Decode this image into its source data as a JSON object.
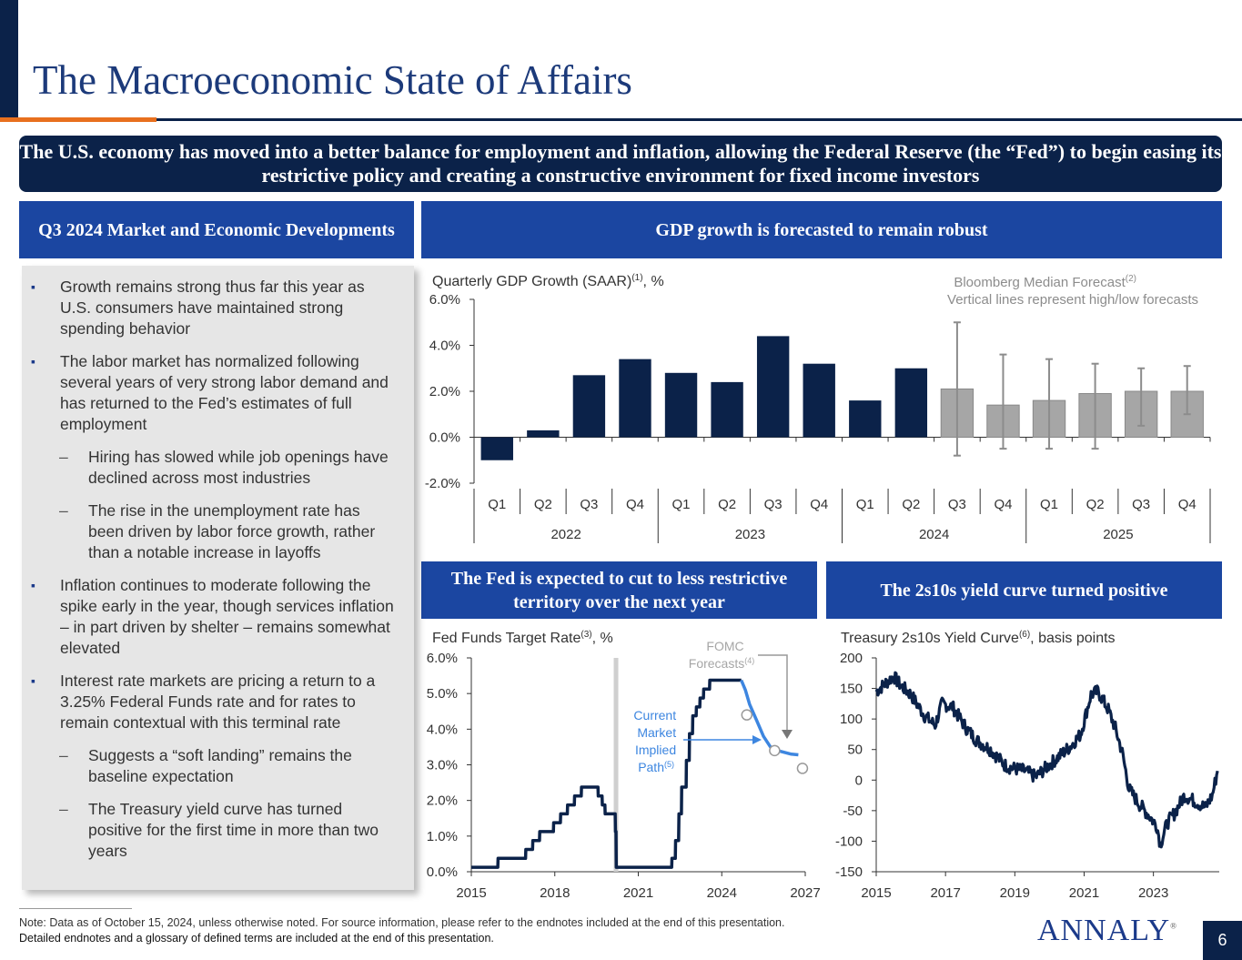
{
  "title": "The Macroeconomic State of Affairs",
  "banner": "The U.S. economy has moved into a better balance for employment and inflation, allowing the Federal Reserve (the “Fed”) to begin easing its restrictive policy and creating a constructive environment for fixed income investors",
  "left_panel": {
    "header": "Q3 2024 Market and Economic Developments",
    "bullets": [
      {
        "level": 1,
        "text": "Growth remains strong thus far this year as U.S. consumers have maintained strong spending behavior"
      },
      {
        "level": 1,
        "text": "The labor market has normalized following several years of very strong labor demand and has returned to the Fed’s estimates of full employment"
      },
      {
        "level": 2,
        "text": "Hiring has slowed while job openings have declined across most industries"
      },
      {
        "level": 2,
        "text": "The rise in the unemployment rate has been driven by labor force growth, rather than a notable increase in layoffs"
      },
      {
        "level": 1,
        "text": "Inflation continues to moderate following the spike early in the year, though services inflation – in part driven by shelter – remains somewhat elevated"
      },
      {
        "level": 1,
        "text": "Interest rate markets are pricing a return to a 3.25% Federal Funds rate and for rates to remain contextual with this terminal rate"
      },
      {
        "level": 2,
        "text": "Suggests a “soft landing” remains the baseline expectation"
      },
      {
        "level": 2,
        "text": "The Treasury yield curve has turned positive for the first time in more than two years"
      }
    ]
  },
  "headers": {
    "gdp": "GDP growth is forecasted to remain robust",
    "fed": "The Fed is expected to cut to less restrictive territory over the next year",
    "curve": "The 2s10s yield curve turned positive"
  },
  "chart_data": [
    {
      "type": "bar",
      "title": "Quarterly GDP Growth (SAAR)",
      "title_sup": "(1)",
      "title_unit": ", %",
      "forecast_label": "Bloomberg Median Forecast",
      "forecast_sup": "(2)",
      "forecast_note": "Vertical lines represent high/low forecasts",
      "ylim": [
        -2,
        6
      ],
      "yticks": [
        "6.0%",
        "4.0%",
        "2.0%",
        "0.0%",
        "-2.0%"
      ],
      "categories": [
        "Q1",
        "Q2",
        "Q3",
        "Q4",
        "Q1",
        "Q2",
        "Q3",
        "Q4",
        "Q1",
        "Q2",
        "Q3",
        "Q4",
        "Q1",
        "Q2",
        "Q3",
        "Q4"
      ],
      "years": [
        "2022",
        "2023",
        "2024",
        "2025"
      ],
      "actual": [
        -1.0,
        0.3,
        2.7,
        3.4,
        2.8,
        2.4,
        4.4,
        3.2,
        1.6,
        3.0
      ],
      "forecast": [
        {
          "value": 2.1,
          "high": 5.0,
          "low": -0.8
        },
        {
          "value": 1.4,
          "high": 3.6,
          "low": -0.5
        },
        {
          "value": 1.6,
          "high": 3.4,
          "low": -0.5
        },
        {
          "value": 1.9,
          "high": 3.2,
          "low": -0.5
        },
        {
          "value": 2.0,
          "high": 3.0,
          "low": 0.5
        },
        {
          "value": 2.0,
          "high": 3.1,
          "low": 1.0
        }
      ],
      "colors": {
        "actual": "#0b2249",
        "forecast": "#a6a6a6",
        "whisker": "#8c8c8c"
      }
    },
    {
      "type": "line",
      "title": "Fed Funds Target Rate",
      "title_sup": "(3)",
      "title_unit": ", %",
      "ylim": [
        0,
        6
      ],
      "xlim": [
        2015,
        2027
      ],
      "yticks": [
        "6.0%",
        "5.0%",
        "4.0%",
        "3.0%",
        "2.0%",
        "1.0%",
        "0.0%"
      ],
      "xticks": [
        "2015",
        "2018",
        "2021",
        "2024",
        "2027"
      ],
      "fomc_label": "FOMC",
      "fomc_label2": "Forecasts",
      "fomc_sup": "(4)",
      "market_label": [
        "Current",
        "Market",
        "Implied",
        "Path"
      ],
      "market_sup": "(5)",
      "history": [
        [
          2015,
          0.125
        ],
        [
          2015.95,
          0.125
        ],
        [
          2015.96,
          0.375
        ],
        [
          2016.95,
          0.375
        ],
        [
          2016.96,
          0.625
        ],
        [
          2017.2,
          0.625
        ],
        [
          2017.21,
          0.875
        ],
        [
          2017.45,
          0.875
        ],
        [
          2017.46,
          1.125
        ],
        [
          2017.95,
          1.125
        ],
        [
          2017.96,
          1.375
        ],
        [
          2018.2,
          1.375
        ],
        [
          2018.21,
          1.625
        ],
        [
          2018.45,
          1.625
        ],
        [
          2018.46,
          1.875
        ],
        [
          2018.7,
          1.875
        ],
        [
          2018.71,
          2.125
        ],
        [
          2018.95,
          2.125
        ],
        [
          2018.96,
          2.375
        ],
        [
          2019.55,
          2.375
        ],
        [
          2019.56,
          2.125
        ],
        [
          2019.7,
          2.125
        ],
        [
          2019.71,
          1.875
        ],
        [
          2019.8,
          1.875
        ],
        [
          2019.81,
          1.625
        ],
        [
          2020.17,
          1.625
        ],
        [
          2020.18,
          1.125
        ],
        [
          2020.2,
          1.125
        ],
        [
          2020.21,
          0.125
        ],
        [
          2022.2,
          0.125
        ],
        [
          2022.21,
          0.375
        ],
        [
          2022.33,
          0.375
        ],
        [
          2022.34,
          0.875
        ],
        [
          2022.45,
          0.875
        ],
        [
          2022.46,
          1.625
        ],
        [
          2022.55,
          1.625
        ],
        [
          2022.56,
          2.375
        ],
        [
          2022.72,
          2.375
        ],
        [
          2022.73,
          3.125
        ],
        [
          2022.83,
          3.125
        ],
        [
          2022.84,
          3.875
        ],
        [
          2022.95,
          3.875
        ],
        [
          2022.96,
          4.375
        ],
        [
          2023.08,
          4.375
        ],
        [
          2023.09,
          4.625
        ],
        [
          2023.21,
          4.625
        ],
        [
          2023.22,
          4.875
        ],
        [
          2023.34,
          4.875
        ],
        [
          2023.35,
          5.125
        ],
        [
          2023.56,
          5.125
        ],
        [
          2023.57,
          5.375
        ],
        [
          2024.7,
          5.375
        ]
      ],
      "market_path": [
        [
          2024.7,
          5.375
        ],
        [
          2024.85,
          5.1
        ],
        [
          2025.0,
          4.7
        ],
        [
          2025.25,
          4.25
        ],
        [
          2025.5,
          3.8
        ],
        [
          2025.75,
          3.5
        ],
        [
          2026.0,
          3.4
        ],
        [
          2026.5,
          3.3
        ],
        [
          2026.75,
          3.28
        ]
      ],
      "fomc_points": [
        [
          2024.9,
          4.4
        ],
        [
          2025.9,
          3.4
        ],
        [
          2026.9,
          2.9
        ]
      ],
      "gap_marker": 2020.2,
      "colors": {
        "history": "#0b2249",
        "market": "#3d86e0",
        "gap": "#cfcfcf"
      }
    },
    {
      "type": "line",
      "title": "Treasury 2s10s Yield Curve",
      "title_sup": "(6)",
      "title_unit": ", basis points",
      "ylim": [
        -150,
        200
      ],
      "xlim": [
        2015,
        2024.9
      ],
      "yticks": [
        "200",
        "150",
        "100",
        "50",
        "0",
        "-50",
        "-100",
        "-150"
      ],
      "xticks": [
        "2015",
        "2017",
        "2019",
        "2021",
        "2023"
      ],
      "anchors": [
        [
          2015,
          145
        ],
        [
          2015.3,
          160
        ],
        [
          2015.5,
          170
        ],
        [
          2015.7,
          155
        ],
        [
          2016,
          140
        ],
        [
          2016.4,
          105
        ],
        [
          2016.7,
          90
        ],
        [
          2016.9,
          125
        ],
        [
          2017.2,
          120
        ],
        [
          2017.6,
          85
        ],
        [
          2017.9,
          65
        ],
        [
          2018.3,
          50
        ],
        [
          2018.7,
          25
        ],
        [
          2018.9,
          20
        ],
        [
          2019.3,
          15
        ],
        [
          2019.6,
          5
        ],
        [
          2019.9,
          20
        ],
        [
          2020.2,
          35
        ],
        [
          2020.6,
          55
        ],
        [
          2020.9,
          75
        ],
        [
          2021.2,
          140
        ],
        [
          2021.4,
          145
        ],
        [
          2021.7,
          115
        ],
        [
          2021.9,
          85
        ],
        [
          2022.1,
          45
        ],
        [
          2022.3,
          -15
        ],
        [
          2022.6,
          -40
        ],
        [
          2022.9,
          -60
        ],
        [
          2023.1,
          -75
        ],
        [
          2023.2,
          -105
        ],
        [
          2023.4,
          -70
        ],
        [
          2023.6,
          -55
        ],
        [
          2023.9,
          -25
        ],
        [
          2024.2,
          -35
        ],
        [
          2024.5,
          -45
        ],
        [
          2024.7,
          -25
        ],
        [
          2024.85,
          15
        ]
      ],
      "color": "#0b2249"
    }
  ],
  "footnote": {
    "line1": "Note: Data as of October 15, 2024, unless otherwise noted. For source information, please refer to the endnotes included at the end of this presentation.",
    "line2": "Detailed endnotes and a glossary of defined terms are included at the end of this presentation."
  },
  "logo": "ANNALY",
  "page_number": "6"
}
